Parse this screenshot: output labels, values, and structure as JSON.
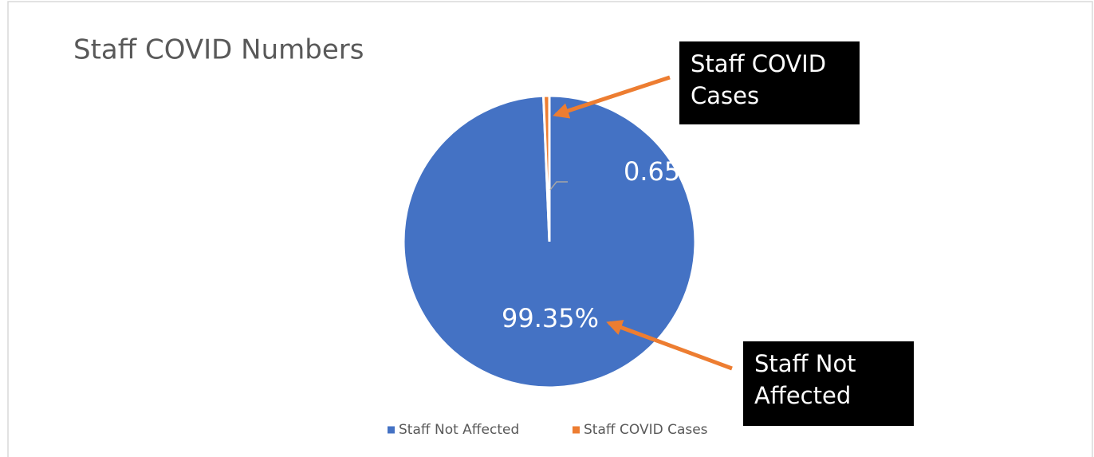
{
  "chart_data": {
    "type": "pie",
    "title": "Staff COVID Numbers",
    "categories": [
      "Staff Not Affected",
      "Staff COVID Cases"
    ],
    "values": [
      99.35,
      0.651
    ],
    "value_labels": [
      "99.35%",
      "0.651%"
    ],
    "colors": [
      "#4472c4",
      "#ed7d31"
    ],
    "legend": "bottom",
    "annotations": [
      "Staff Not Affected",
      "Staff COVID Cases"
    ]
  }
}
